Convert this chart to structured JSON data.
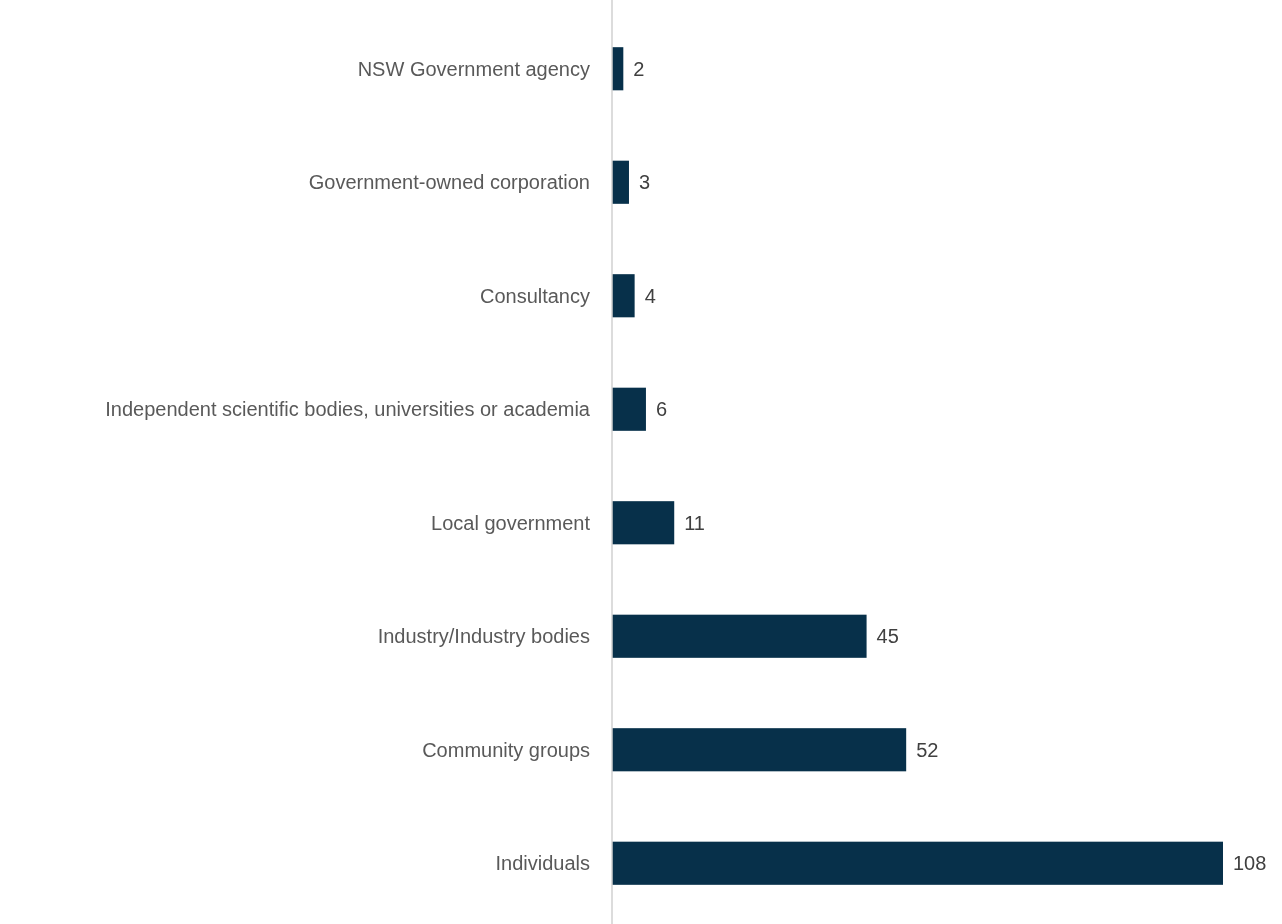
{
  "chart_data": {
    "type": "bar",
    "orientation": "horizontal",
    "categories": [
      "NSW Government agency",
      "Government-owned corporation",
      "Consultancy",
      "Independent scientific bodies, universities or academia",
      "Local government",
      "Industry/Industry bodies",
      "Community groups",
      "Individuals"
    ],
    "values": [
      2,
      3,
      4,
      6,
      11,
      45,
      52,
      108
    ],
    "color": "#07304a",
    "data_labels": true
  }
}
